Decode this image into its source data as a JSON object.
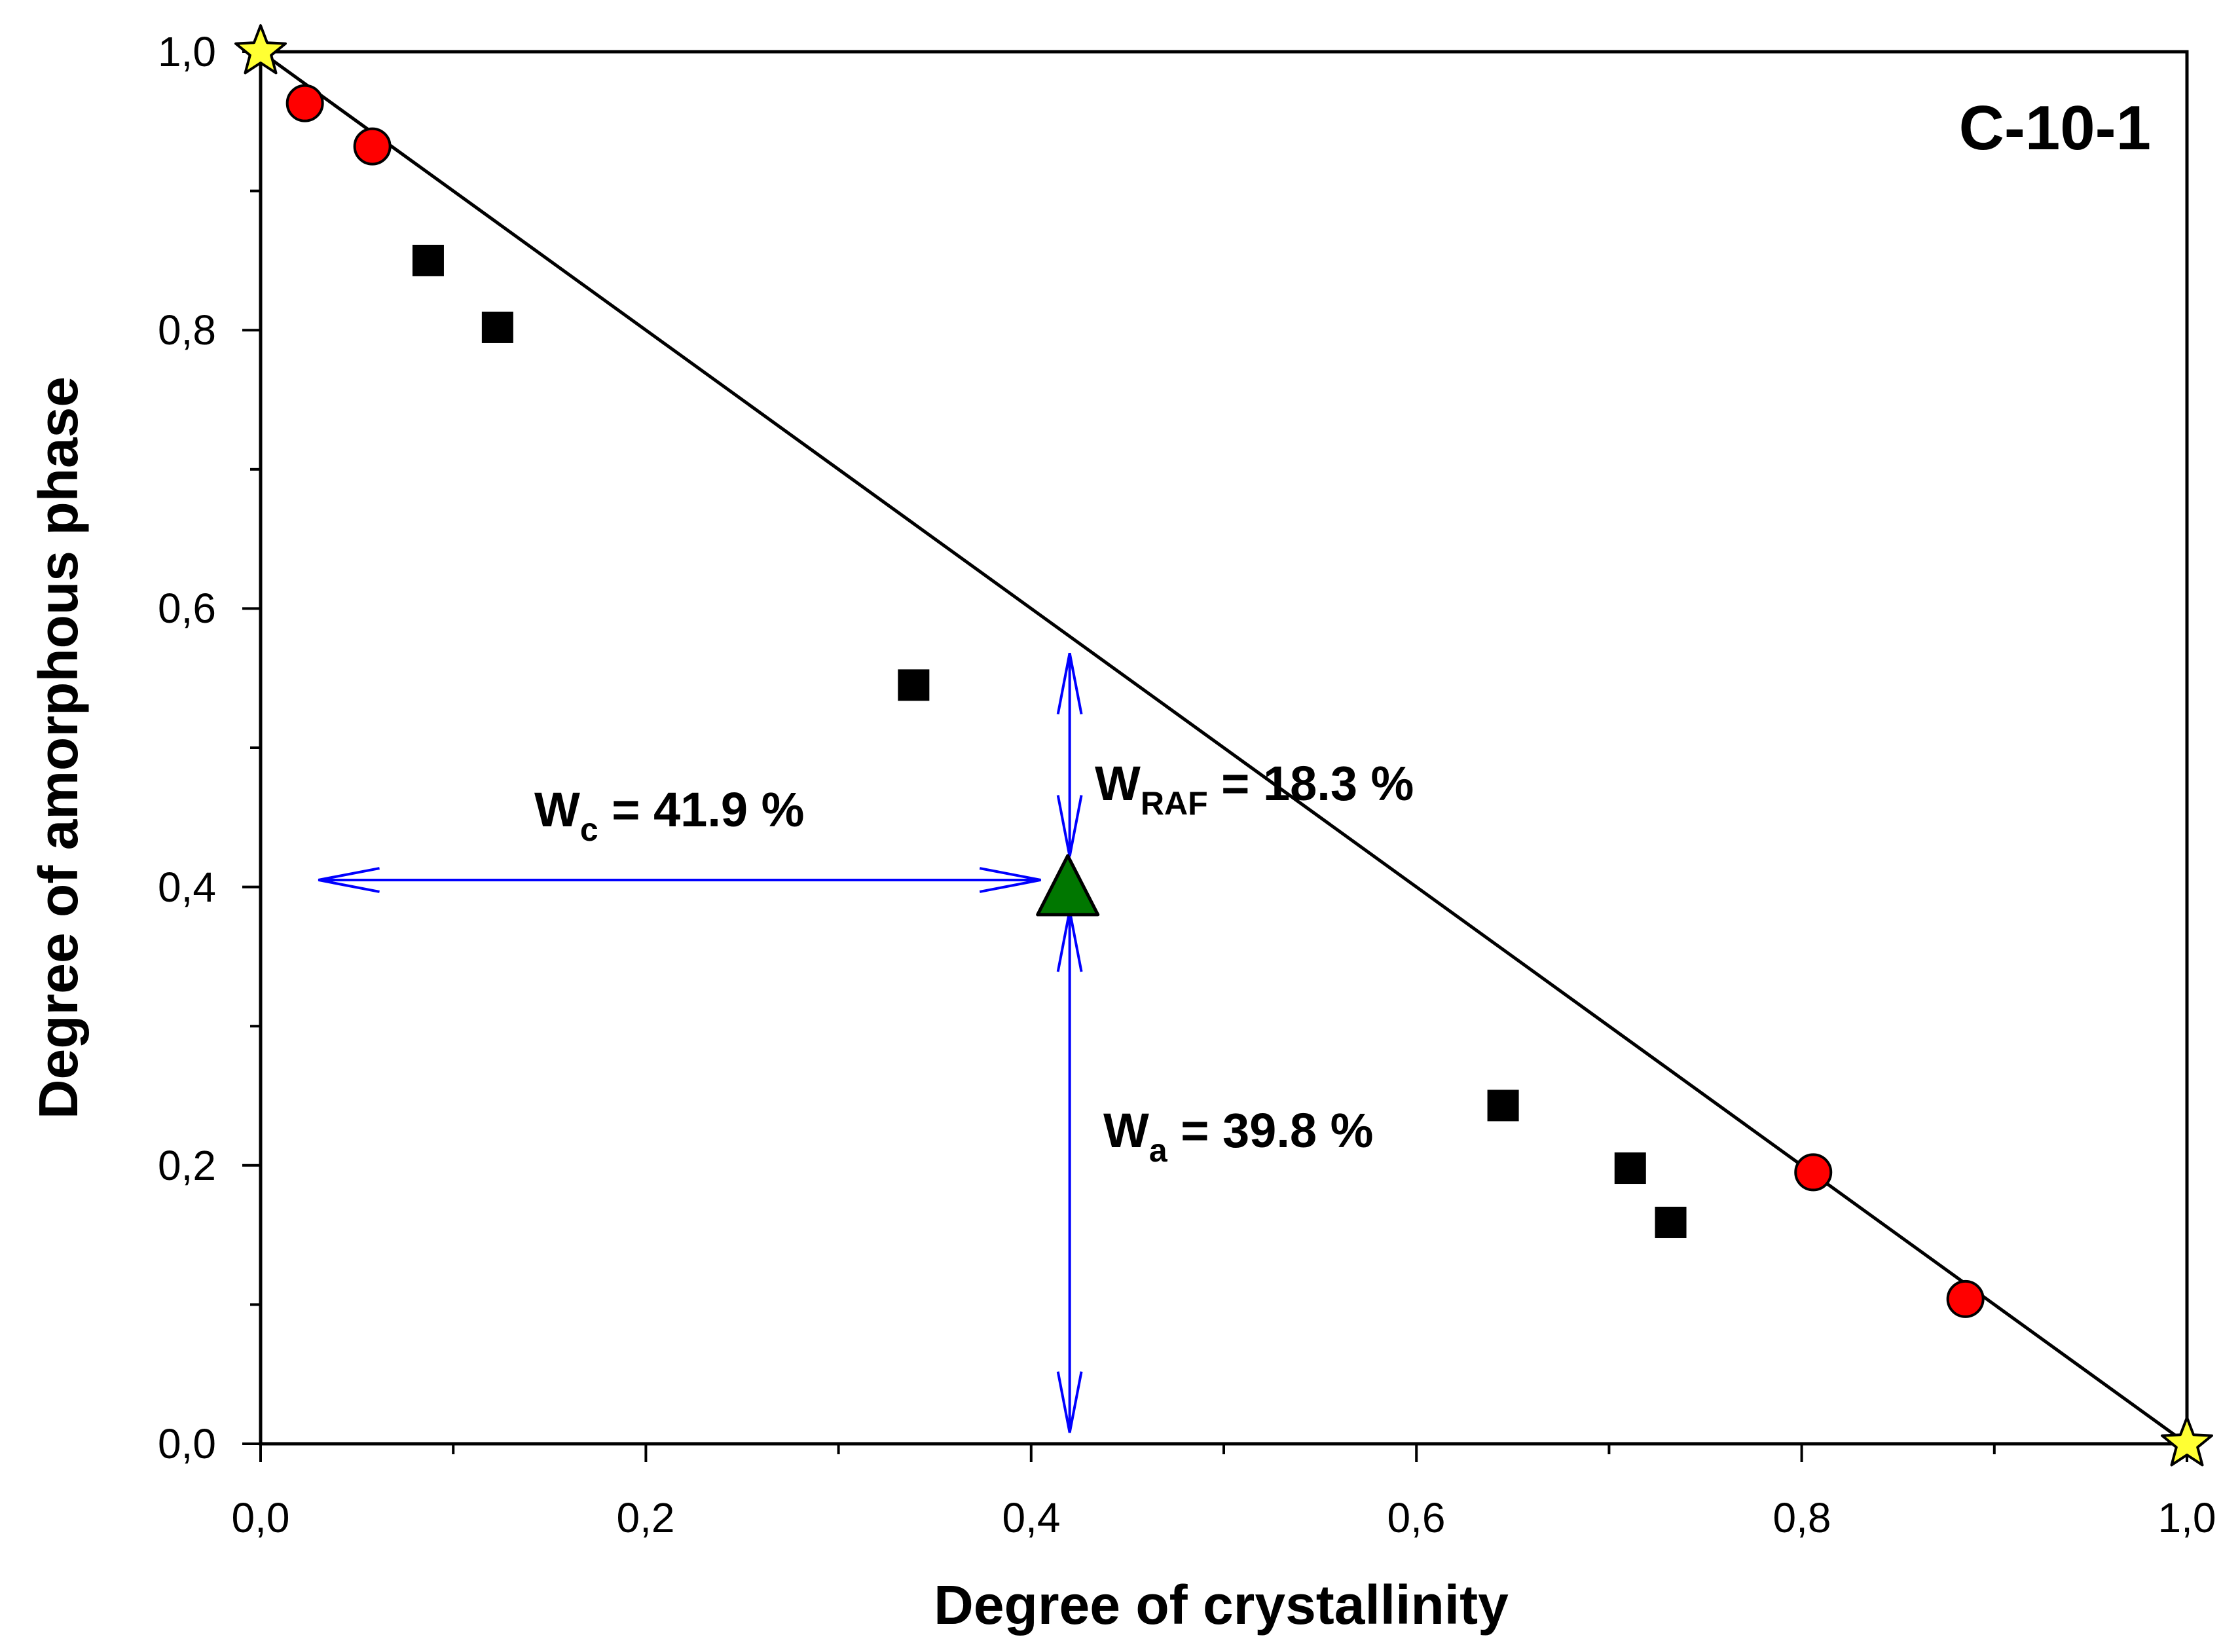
{
  "chart_data": {
    "type": "scatter",
    "title": "",
    "panel_label": "C-10-1",
    "xlabel": "Degree of crystallinity",
    "ylabel": "Degree of amorphous phase",
    "xlim": [
      0.0,
      1.0
    ],
    "ylim": [
      0.0,
      1.0
    ],
    "x_ticks": [
      "0,0",
      "0,2",
      "0,4",
      "0,6",
      "0,8",
      "1,0"
    ],
    "y_ticks": [
      "0,0",
      "0,2",
      "0,4",
      "0,6",
      "0,8",
      "1,0"
    ],
    "line": {
      "name": "two-phase line",
      "x": [
        0.0,
        1.0
      ],
      "y": [
        1.0,
        0.0
      ],
      "color": "#000000"
    },
    "series": [
      {
        "name": "stars",
        "marker": "star",
        "color": "#ffff33",
        "x": [
          0.0,
          1.0
        ],
        "y": [
          1.0,
          0.0
        ]
      },
      {
        "name": "circles",
        "marker": "circle",
        "color": "#ff0000",
        "x": [
          0.023,
          0.058,
          0.806,
          0.885
        ],
        "y": [
          0.963,
          0.932,
          0.195,
          0.104
        ]
      },
      {
        "name": "squares",
        "marker": "square",
        "color": "#000000",
        "x": [
          0.087,
          0.123,
          0.339,
          0.645,
          0.711,
          0.732
        ],
        "y": [
          0.85,
          0.802,
          0.545,
          0.243,
          0.198,
          0.159
        ]
      },
      {
        "name": "triangle",
        "marker": "triangle",
        "color": "#007700",
        "x": [
          0.419
        ],
        "y": [
          0.398
        ]
      }
    ],
    "annotations": {
      "wc": {
        "main": "W",
        "sub": "c",
        "value": " = 41.9 %"
      },
      "wraf": {
        "main": "W",
        "sub": "RAF",
        "value": " = 18.3 %"
      },
      "wa": {
        "main": "W",
        "sub": "a",
        "value": " = 39.8 %"
      }
    },
    "arrows": [
      {
        "name": "wc-arrow",
        "x": [
          0.03,
          0.405
        ],
        "y": [
          0.405,
          0.405
        ]
      },
      {
        "name": "wraf-arrow",
        "x": [
          0.42,
          0.42
        ],
        "y": [
          0.568,
          0.422
        ]
      },
      {
        "name": "wa-arrow",
        "x": [
          0.42,
          0.42
        ],
        "y": [
          0.383,
          0.008
        ]
      }
    ],
    "arrow_color": "#0000ff"
  }
}
